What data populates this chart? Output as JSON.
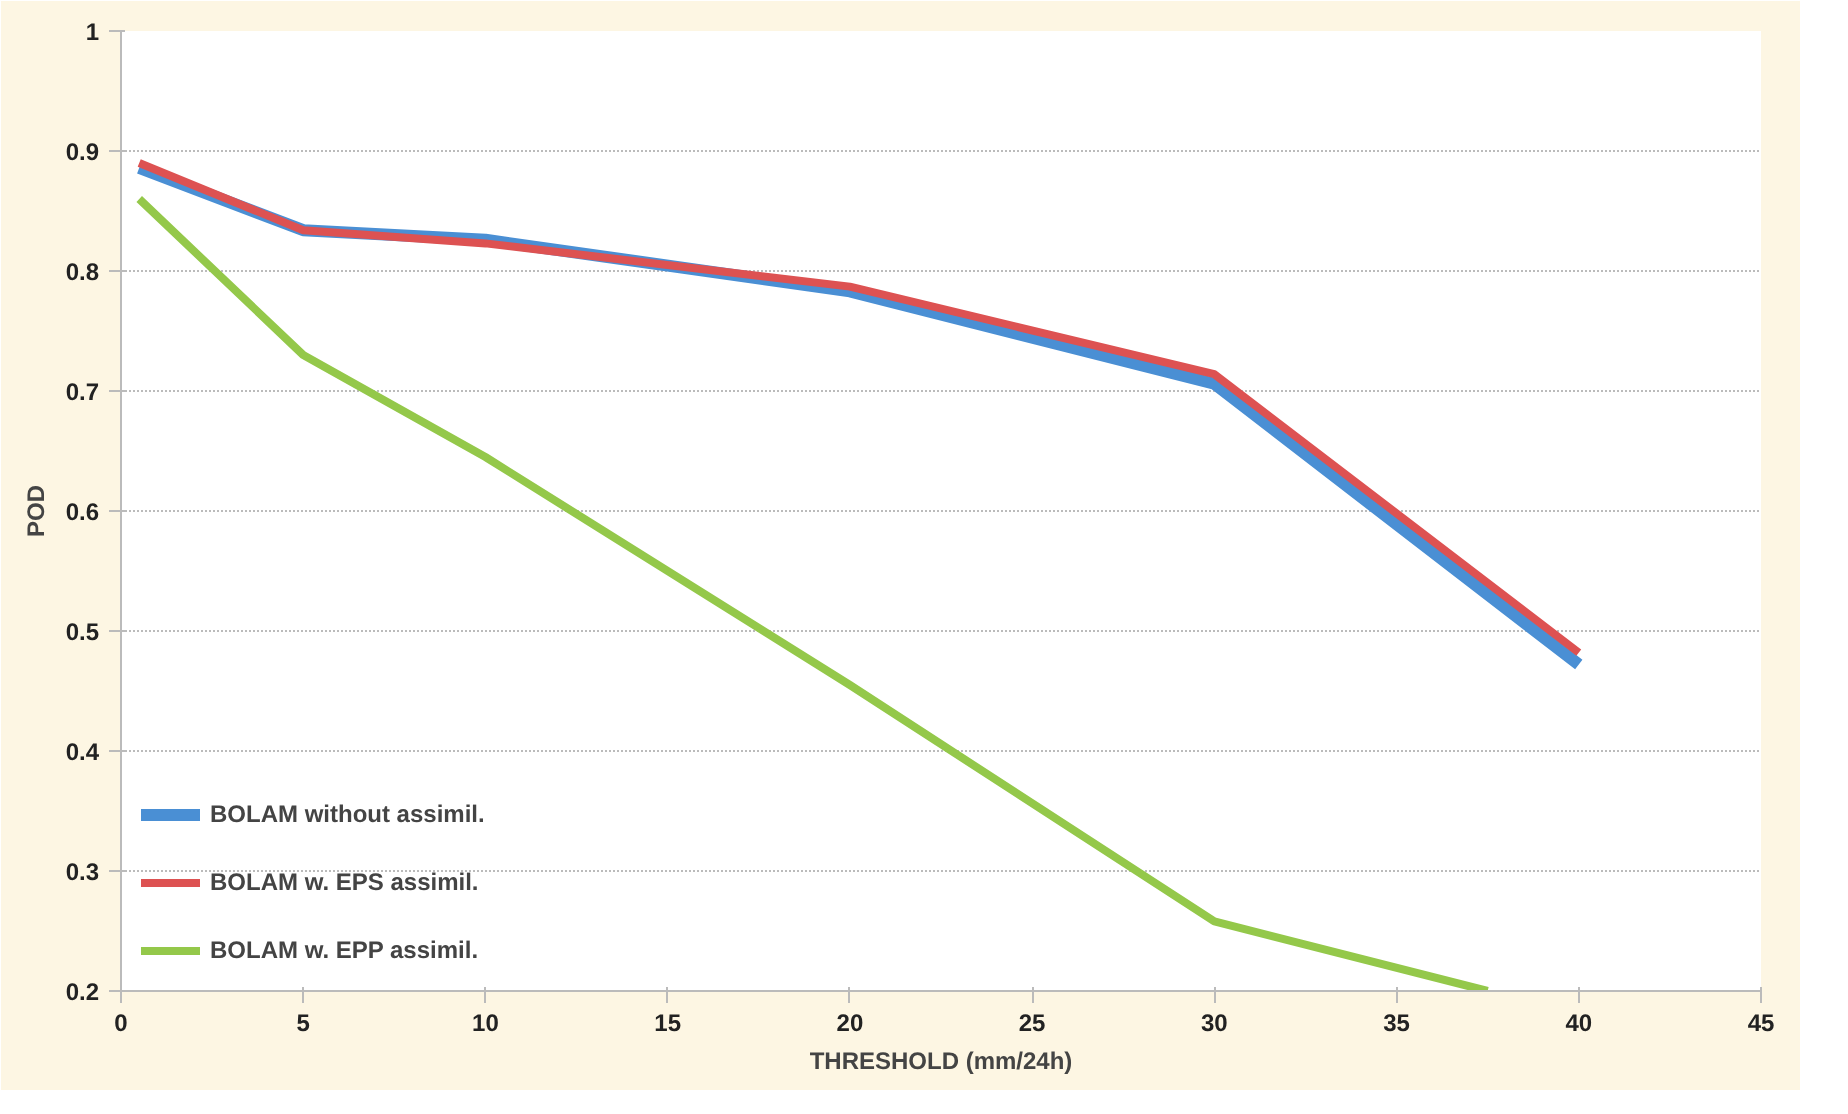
{
  "chart_data": {
    "type": "line",
    "xlabel": "THRESHOLD (mm/24h)",
    "ylabel": "POD",
    "x": [
      0.5,
      5,
      10,
      20,
      30,
      40
    ],
    "xlim": [
      0,
      45
    ],
    "xticks": [
      0,
      5,
      10,
      15,
      20,
      25,
      30,
      35,
      40,
      45
    ],
    "ylim": [
      0.2,
      1
    ],
    "yticks": [
      0.2,
      0.3,
      0.4,
      0.5,
      0.6,
      0.7,
      0.8,
      0.9,
      1
    ],
    "grid": "y",
    "legend": "bottom left",
    "marker": "none",
    "line_style": "solid",
    "series": [
      {
        "name": "BOLAM without assimil.",
        "color": "#4a8fd4",
        "values": [
          0.886,
          0.834,
          0.826,
          0.783,
          0.706,
          0.472
        ]
      },
      {
        "name": "BOLAM w. EPS assimil.",
        "color": "#dd5252",
        "values": [
          0.89,
          0.834,
          0.823,
          0.787,
          0.714,
          0.482
        ]
      },
      {
        "name": "BOLAM w. EPP assimil.",
        "color": "#94c84a",
        "x": [
          0.5,
          5,
          10,
          20,
          30,
          37.5
        ],
        "values": [
          0.86,
          0.73,
          0.645,
          0.455,
          0.258,
          0.2
        ]
      }
    ]
  }
}
